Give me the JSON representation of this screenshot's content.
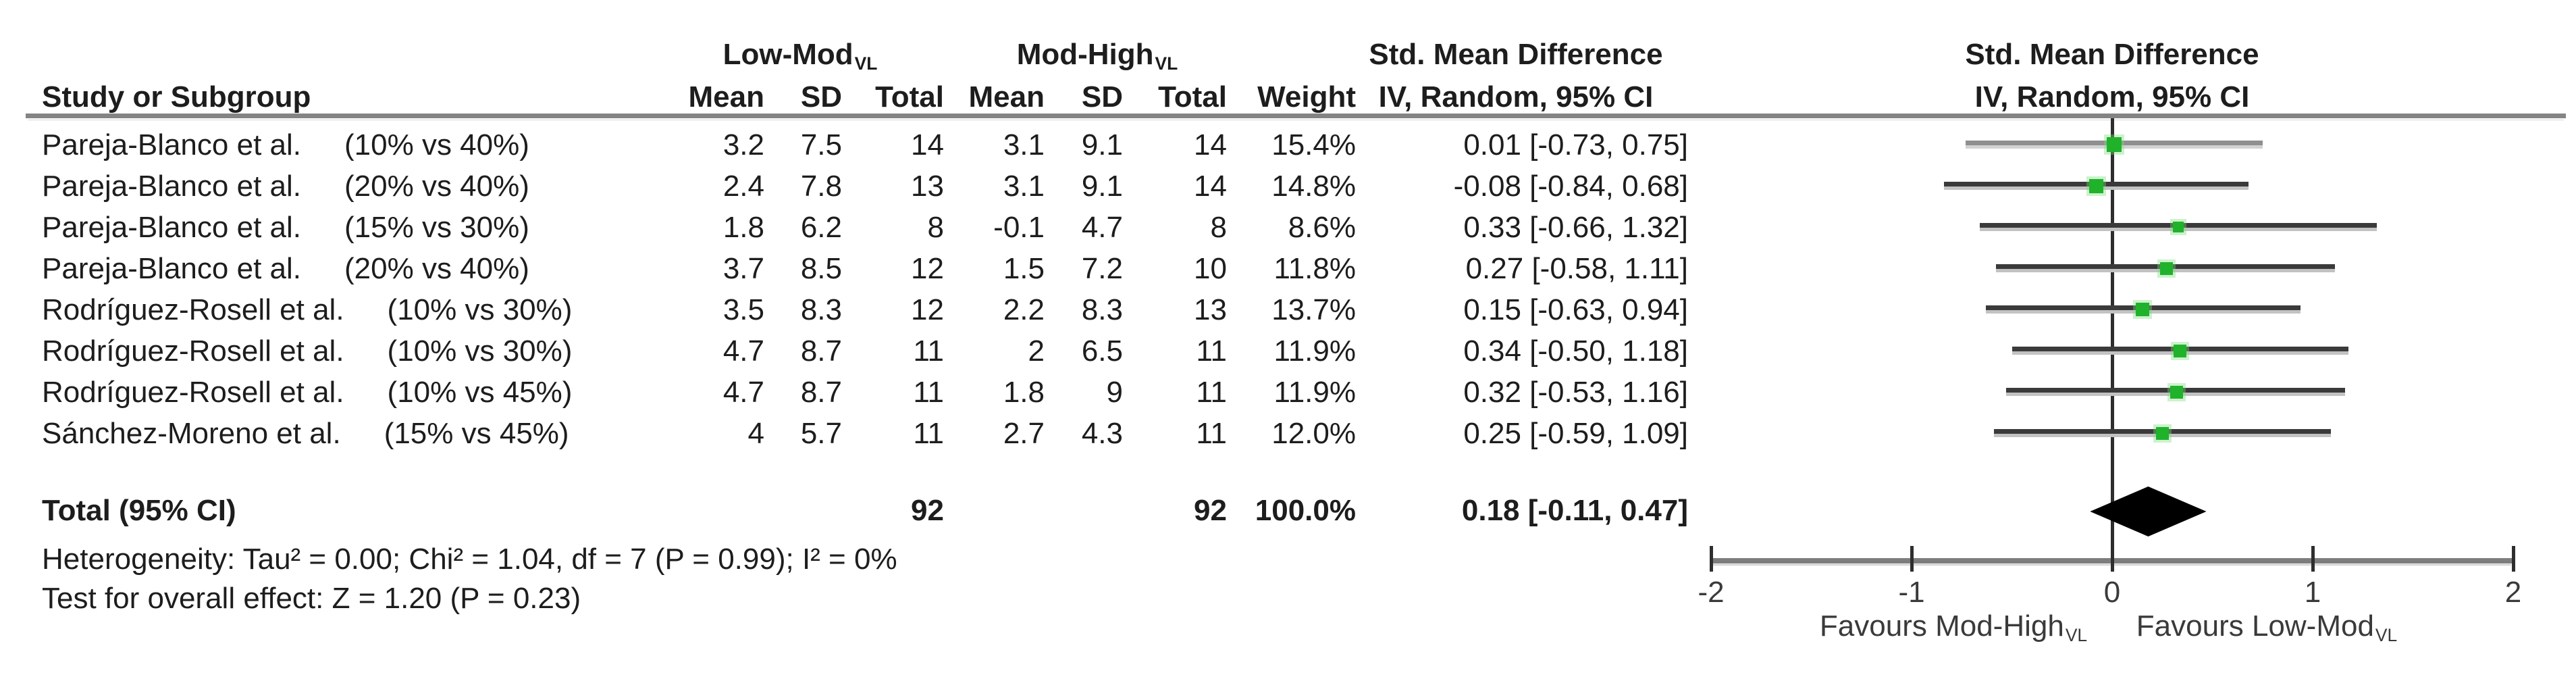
{
  "header": {
    "study_col": "Study or Subgroup",
    "group1": {
      "text": "Low-Mod",
      "sub": "VL"
    },
    "group2": {
      "text": "Mod-High",
      "sub": "VL"
    },
    "mean": "Mean",
    "sd": "SD",
    "total": "Total",
    "weight": "Weight",
    "smd_title": "Std. Mean Difference",
    "smd_subtitle": "IV, Random, 95% CI"
  },
  "chart_data": {
    "type": "scatter",
    "description": "Forest plot of standardized mean differences (IV, Random, 95% CI) comparing Low-Mod VL vs Mod-High VL",
    "plot_title": "Std. Mean Difference",
    "plot_subtitle": "IV, Random, 95% CI",
    "axis": {
      "ticks": [
        -2,
        -1,
        0,
        1,
        2
      ],
      "range": [
        -2,
        2
      ],
      "grid": false
    },
    "favours_left": {
      "text": "Favours Mod-High",
      "sub": "VL"
    },
    "favours_right": {
      "text": "Favours Low-Mod",
      "sub": "VL"
    },
    "studies": [
      {
        "study": "Pareja-Blanco et al.",
        "subgroup": "(10% vs 40%)",
        "mean1": "3.2",
        "sd1": "7.5",
        "total1": "14",
        "mean2": "3.1",
        "sd2": "9.1",
        "total2": "14",
        "weight": "15.4%",
        "weight_value": 15.4,
        "ci_text": "0.01 [-0.73, 0.75]",
        "est": 0.01,
        "lo": -0.73,
        "hi": 0.75
      },
      {
        "study": "Pareja-Blanco et al.",
        "subgroup": "(20% vs 40%)",
        "mean1": "2.4",
        "sd1": "7.8",
        "total1": "13",
        "mean2": "3.1",
        "sd2": "9.1",
        "total2": "14",
        "weight": "14.8%",
        "weight_value": 14.8,
        "ci_text": "-0.08 [-0.84, 0.68]",
        "est": -0.08,
        "lo": -0.84,
        "hi": 0.68
      },
      {
        "study": "Pareja-Blanco et al.",
        "subgroup": "(15% vs 30%)",
        "mean1": "1.8",
        "sd1": "6.2",
        "total1": "8",
        "mean2": "-0.1",
        "sd2": "4.7",
        "total2": "8",
        "weight": "8.6%",
        "weight_value": 8.6,
        "ci_text": "0.33 [-0.66, 1.32]",
        "est": 0.33,
        "lo": -0.66,
        "hi": 1.32
      },
      {
        "study": "Pareja-Blanco et al.",
        "subgroup": "(20% vs 40%)",
        "mean1": "3.7",
        "sd1": "8.5",
        "total1": "12",
        "mean2": "1.5",
        "sd2": "7.2",
        "total2": "10",
        "weight": "11.8%",
        "weight_value": 11.8,
        "ci_text": "0.27 [-0.58, 1.11]",
        "est": 0.27,
        "lo": -0.58,
        "hi": 1.11
      },
      {
        "study": "Rodríguez-Rosell et al.",
        "subgroup": "(10% vs 30%)",
        "mean1": "3.5",
        "sd1": "8.3",
        "total1": "12",
        "mean2": "2.2",
        "sd2": "8.3",
        "total2": "13",
        "weight": "13.7%",
        "weight_value": 13.7,
        "ci_text": "0.15 [-0.63, 0.94]",
        "est": 0.15,
        "lo": -0.63,
        "hi": 0.94
      },
      {
        "study": "Rodríguez-Rosell et al.",
        "subgroup": "(10% vs 30%)",
        "mean1": "4.7",
        "sd1": "8.7",
        "total1": "11",
        "mean2": "2",
        "sd2": "6.5",
        "total2": "11",
        "weight": "11.9%",
        "weight_value": 11.9,
        "ci_text": "0.34 [-0.50, 1.18]",
        "est": 0.34,
        "lo": -0.5,
        "hi": 1.18
      },
      {
        "study": "Rodríguez-Rosell et al.",
        "subgroup": "(10% vs 45%)",
        "mean1": "4.7",
        "sd1": "8.7",
        "total1": "11",
        "mean2": "1.8",
        "sd2": "9",
        "total2": "11",
        "weight": "11.9%",
        "weight_value": 11.9,
        "ci_text": "0.32 [-0.53, 1.16]",
        "est": 0.32,
        "lo": -0.53,
        "hi": 1.16
      },
      {
        "study": "Sánchez-Moreno et al.",
        "subgroup": "(15% vs 45%)",
        "mean1": "4",
        "sd1": "5.7",
        "total1": "11",
        "mean2": "2.7",
        "sd2": "4.3",
        "total2": "11",
        "weight": "12.0%",
        "weight_value": 12.0,
        "ci_text": "0.25 [-0.59, 1.09]",
        "est": 0.25,
        "lo": -0.59,
        "hi": 1.09
      }
    ],
    "total_row": {
      "label": "Total (95% CI)",
      "total1": "92",
      "total2": "92",
      "weight": "100.0%",
      "ci_text": "0.18 [-0.11, 0.47]",
      "est": 0.18,
      "lo": -0.11,
      "hi": 0.47
    },
    "heterogeneity": "Heterogeneity: Tau² = 0.00; Chi² = 1.04, df = 7 (P = 0.99); I² = 0%",
    "overall_effect": "Test for overall effect: Z = 1.20 (P = 0.23)",
    "colors": {
      "marker_green": "#21b22b",
      "diamond": "#000000",
      "ci_line": "#3a3a3a",
      "ci_line_first": "#8f8f8f",
      "axis_bar": "#7d7d7d",
      "header_rule": "#848484"
    }
  }
}
